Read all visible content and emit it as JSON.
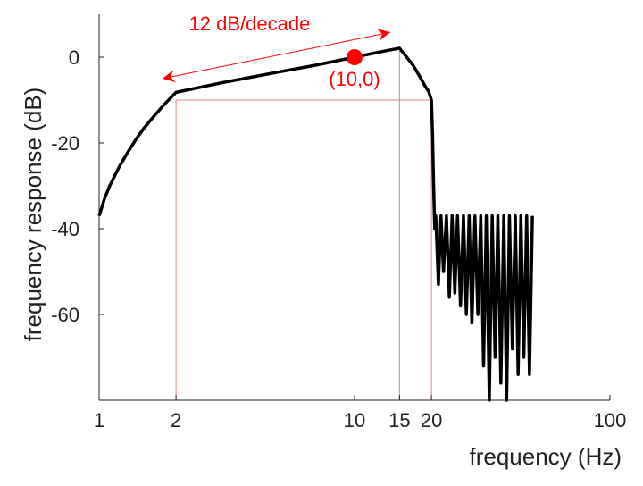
{
  "chart_data": {
    "type": "line",
    "xlabel": "frequency (Hz)",
    "ylabel": "frequency response (dB)",
    "xscale": "log",
    "xlim": [
      1,
      100
    ],
    "ylim": [
      -80,
      10
    ],
    "xticks": [
      1,
      2,
      10,
      15,
      20,
      100
    ],
    "yticks": [
      -60,
      -40,
      -20,
      0
    ],
    "series": [
      {
        "color": "#000000",
        "x": [
          1,
          1.05,
          1.1,
          1.2,
          1.3,
          1.4,
          1.5,
          1.6,
          1.8,
          2,
          3,
          5,
          7,
          10,
          13,
          15,
          16,
          17,
          18,
          19,
          19.5,
          20,
          20.2,
          20.4,
          20.6,
          20.8,
          21.3,
          21.8,
          22.3,
          22.9,
          23.5,
          24.1,
          24.7,
          25.3,
          26,
          26.7,
          27.4,
          28.1,
          28.8,
          29.6,
          30.4,
          31.2,
          32,
          32.8,
          33.7,
          34.6,
          35.5,
          36.4,
          37.4,
          38.4,
          39.4,
          40.4,
          41.5,
          42.6,
          43.7,
          44.8,
          46,
          47.2,
          48.4,
          49.7
        ],
        "values": [
          -37,
          -33,
          -30,
          -25.5,
          -22,
          -19,
          -16.5,
          -14.5,
          -11,
          -8.2,
          -6,
          -3.5,
          -1.9,
          0,
          1.4,
          2.1,
          0,
          -2,
          -4.5,
          -7,
          -8,
          -10,
          -18,
          -30,
          -40,
          -37,
          -53,
          -37,
          -50,
          -37,
          -56,
          -37,
          -55,
          -37,
          -58,
          -37,
          -60,
          -37,
          -62,
          -37,
          -60,
          -37,
          -72,
          -37,
          -80,
          -37,
          -70,
          -37,
          -76,
          -37,
          -80,
          -37,
          -68,
          -37,
          -74,
          -37,
          -70,
          -37,
          -74,
          -37
        ]
      }
    ],
    "guides": {
      "color": "#f08080",
      "segments": [
        {
          "x": [
            2,
            20
          ],
          "y": [
            -10,
            -10
          ]
        },
        {
          "x": [
            2,
            2
          ],
          "y": [
            -10,
            -80
          ]
        },
        {
          "x": [
            15,
            15
          ],
          "y": [
            2.1,
            -80
          ]
        },
        {
          "x": [
            20,
            20
          ],
          "y": [
            -10,
            -80
          ]
        }
      ]
    },
    "annotations": [
      {
        "text": "12 dB/decade",
        "color": "#ff0000",
        "x": [
          1.77,
          13.8
        ],
        "y": [
          -5,
          5.8
        ]
      },
      {
        "text": "(10,0)",
        "color": "#ff0000",
        "x": 10,
        "y": 0
      }
    ]
  }
}
